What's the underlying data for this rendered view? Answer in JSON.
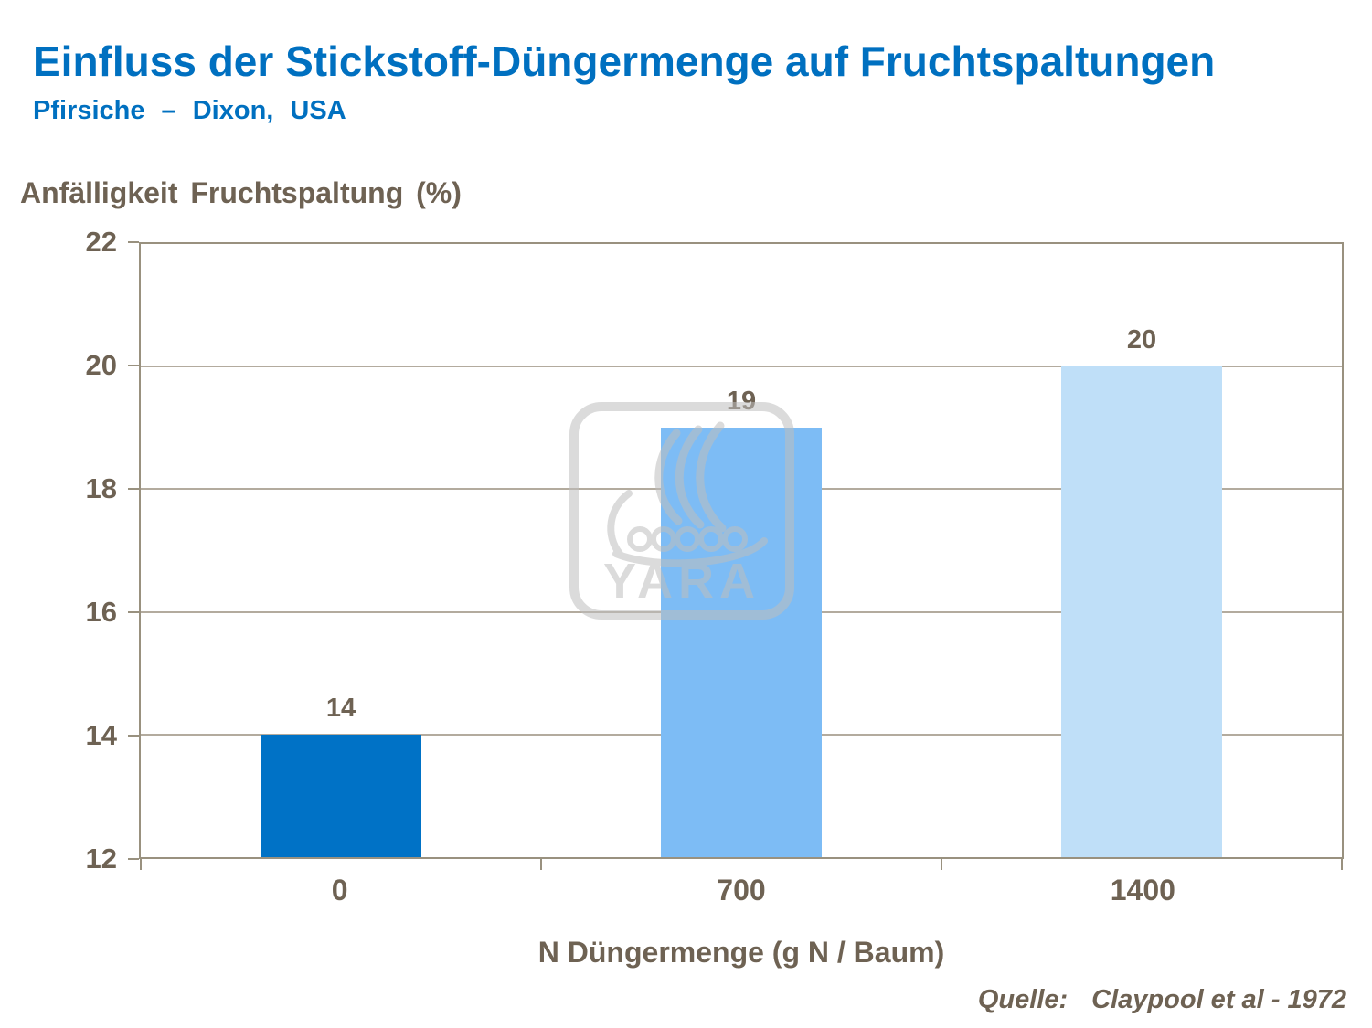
{
  "header": {
    "title": "Einfluss der Stickstoff-Düngermenge auf Fruchtspaltungen",
    "subtitle": "Pfirsiche – Dixon, USA"
  },
  "chart_data": {
    "type": "bar",
    "title": "",
    "ylabel": "Anfälligkeit Fruchtspaltung (%)",
    "xlabel": "N Düngermenge (g N / Baum)",
    "categories": [
      "0",
      "700",
      "1400"
    ],
    "values": [
      14,
      19,
      20
    ],
    "bar_colors": [
      "#0072C6",
      "#7DBCF5",
      "#BFDFF8"
    ],
    "ylim": [
      12,
      22
    ],
    "yticks": [
      12,
      14,
      16,
      18,
      20,
      22
    ],
    "grid": true,
    "legend": "none"
  },
  "footer": {
    "source_label": "Quelle:",
    "source_text": "Claypool et al - 1972"
  },
  "watermark": {
    "text": "YARA"
  },
  "colors": {
    "title_blue": "#0070C0",
    "axis_text": "#6E6253",
    "grid_line": "#B3AB9E",
    "axis_line": "#99917F",
    "watermark_gray": "#BEBEBE"
  }
}
